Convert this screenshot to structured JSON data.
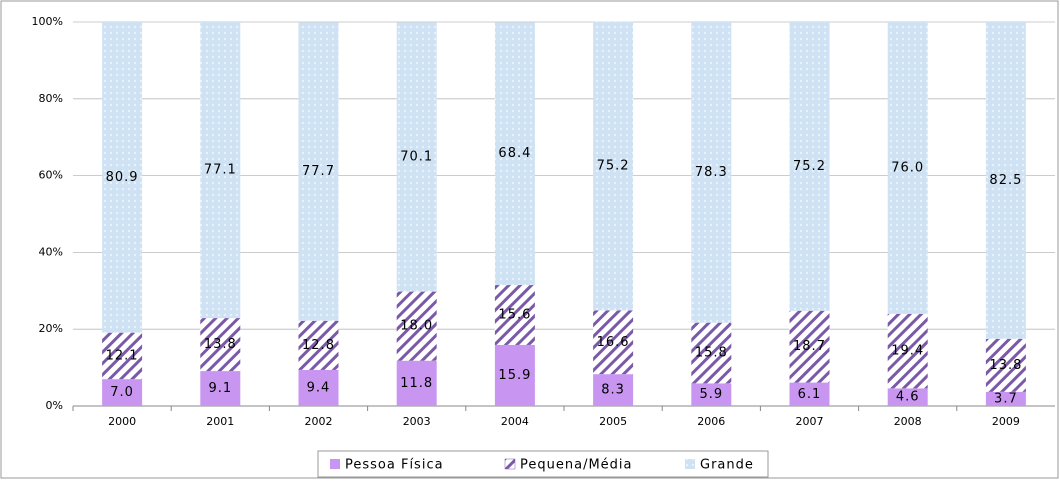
{
  "chart_data": {
    "type": "stacked_bar",
    "categories": [
      "2000",
      "2001",
      "2002",
      "2003",
      "2004",
      "2005",
      "2006",
      "2007",
      "2008",
      "2009"
    ],
    "series": [
      {
        "name": "Pessoa Física",
        "color": "#c896f0",
        "values": [
          7.0,
          9.1,
          9.4,
          11.8,
          15.9,
          8.3,
          5.9,
          6.1,
          4.6,
          3.7
        ],
        "value_labels": [
          "7.0",
          "9.1",
          "9.4",
          "11.8",
          "15.9",
          "8.3",
          "5.9",
          "6.1",
          "4.6",
          "3.7"
        ]
      },
      {
        "name": "Pequena/Média",
        "color": "#7a5aa8",
        "values": [
          12.1,
          13.8,
          12.8,
          18.0,
          15.6,
          16.6,
          15.8,
          18.7,
          19.4,
          13.8
        ],
        "value_labels": [
          "12.1",
          "13.8",
          "12.8",
          "18.0",
          "15.6",
          "16.6",
          "15.8",
          "18.7",
          "19.4",
          "13.8"
        ]
      },
      {
        "name": "Grande",
        "color": "#cfe2f3",
        "values": [
          80.9,
          77.1,
          77.7,
          70.1,
          68.4,
          75.2,
          78.3,
          75.2,
          76.0,
          82.5
        ],
        "value_labels": [
          "80.9",
          "77.1",
          "77.7",
          "70.1",
          "68.4",
          "75.2",
          "78.3",
          "75.2",
          "76.0",
          "82.5"
        ]
      }
    ],
    "ylim": [
      0,
      100
    ],
    "yticks": [
      {
        "value": 0,
        "label": "0%"
      },
      {
        "value": 20,
        "label": "20%"
      },
      {
        "value": 40,
        "label": "40%"
      },
      {
        "value": 60,
        "label": "60%"
      },
      {
        "value": 80,
        "label": "80%"
      },
      {
        "value": 100,
        "label": "100%"
      }
    ],
    "grid": true,
    "legend": "bottom"
  }
}
